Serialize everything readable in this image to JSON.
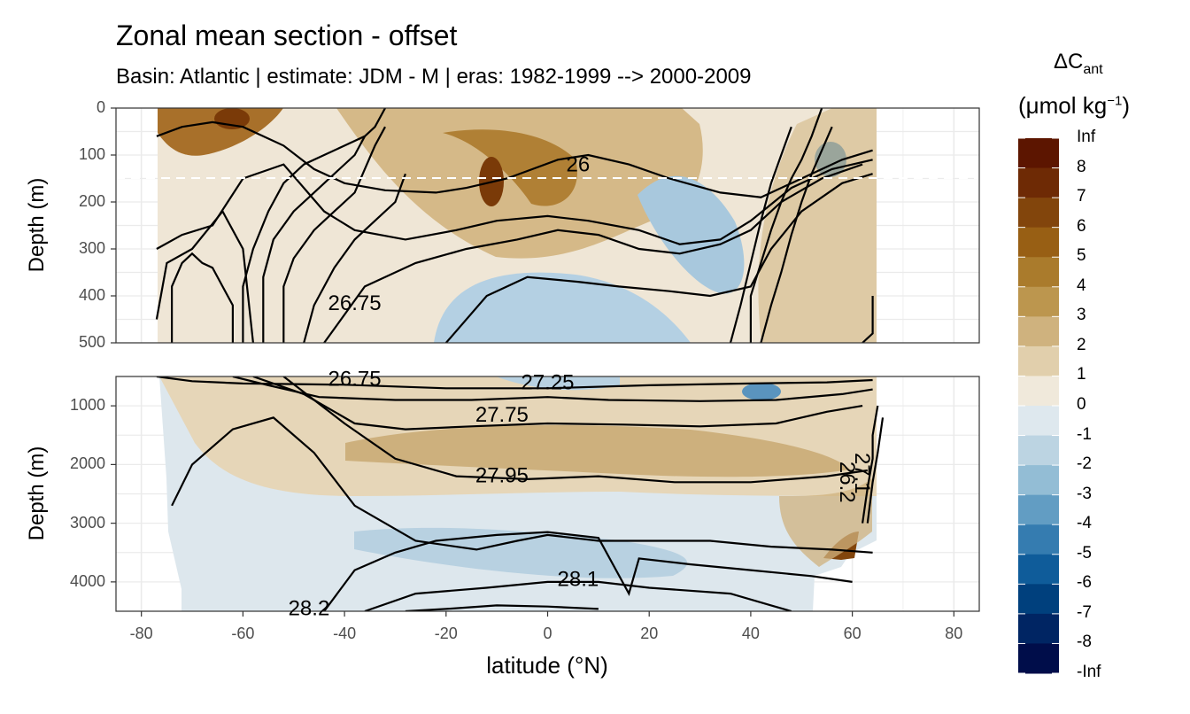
{
  "chart_data": {
    "type": "heatmap",
    "title": "Zonal mean section - offset",
    "subtitle": "Basin: Atlantic | estimate: JDM - M | eras: 1982-1999 --> 2000-2009",
    "xlabel": "latitude (°N)",
    "ylabel": "Depth (m)",
    "xlim": [
      -85,
      85
    ],
    "x_ticks": [
      -80,
      -60,
      -40,
      -20,
      0,
      20,
      40,
      60,
      80
    ],
    "x_tick_labels": [
      "-80",
      "-60",
      "-40",
      "-20",
      "0",
      "20",
      "40",
      "60",
      "80"
    ],
    "panels": [
      {
        "name": "upper",
        "ylim": [
          0,
          500
        ],
        "y_ticks": [
          0,
          100,
          200,
          300,
          400,
          500
        ],
        "y_tick_labels": [
          "0",
          "100",
          "200",
          "300",
          "400",
          "500"
        ],
        "reference_line_depth": 150
      },
      {
        "name": "lower",
        "ylim": [
          500,
          4500
        ],
        "y_ticks": [
          1000,
          2000,
          3000,
          4000
        ],
        "y_tick_labels": [
          "1000",
          "2000",
          "3000",
          "4000"
        ]
      }
    ],
    "legend": {
      "title_main": "ΔC",
      "title_sub": "ant",
      "units_main": "(μmol kg",
      "units_sup": "−1",
      "units_close": ")",
      "placement": "right",
      "levels": [
        "Inf",
        "8",
        "7",
        "6",
        "5",
        "4",
        "3",
        "2",
        "1",
        "0",
        "-1",
        "-2",
        "-3",
        "-4",
        "-5",
        "-6",
        "-7",
        "-8",
        "-Inf"
      ],
      "colors": [
        "#5c1500",
        "#6e2a05",
        "#82450c",
        "#985f14",
        "#aa7b2c",
        "#bc964e",
        "#cfb27e",
        "#e1cfac",
        "#f0e9db",
        "#dee8ee",
        "#bcd4e2",
        "#93bdd5",
        "#629dc3",
        "#357cb0",
        "#0f5c9a",
        "#00407d",
        "#002563",
        "#000d4a"
      ]
    },
    "contours": [
      {
        "label": "26",
        "lat": 6,
        "depth": 120
      },
      {
        "label": "26.75",
        "lat": -38,
        "depth": 415
      },
      {
        "label": "26.75",
        "lat": -38,
        "depth": 540
      },
      {
        "label": "27.25",
        "lat": 0,
        "depth": 600
      },
      {
        "label": "27.75",
        "lat": -9,
        "depth": 1150
      },
      {
        "label": "27.95",
        "lat": -9,
        "depth": 2180
      },
      {
        "label": "28.1",
        "lat": 6,
        "depth": 3950
      },
      {
        "label": "28.2",
        "lat": -47,
        "depth": 4450
      },
      {
        "label": "26.2",
        "lat": 59,
        "depth": 2300
      },
      {
        "label": "27.1",
        "lat": 62,
        "depth": 2150
      }
    ]
  }
}
